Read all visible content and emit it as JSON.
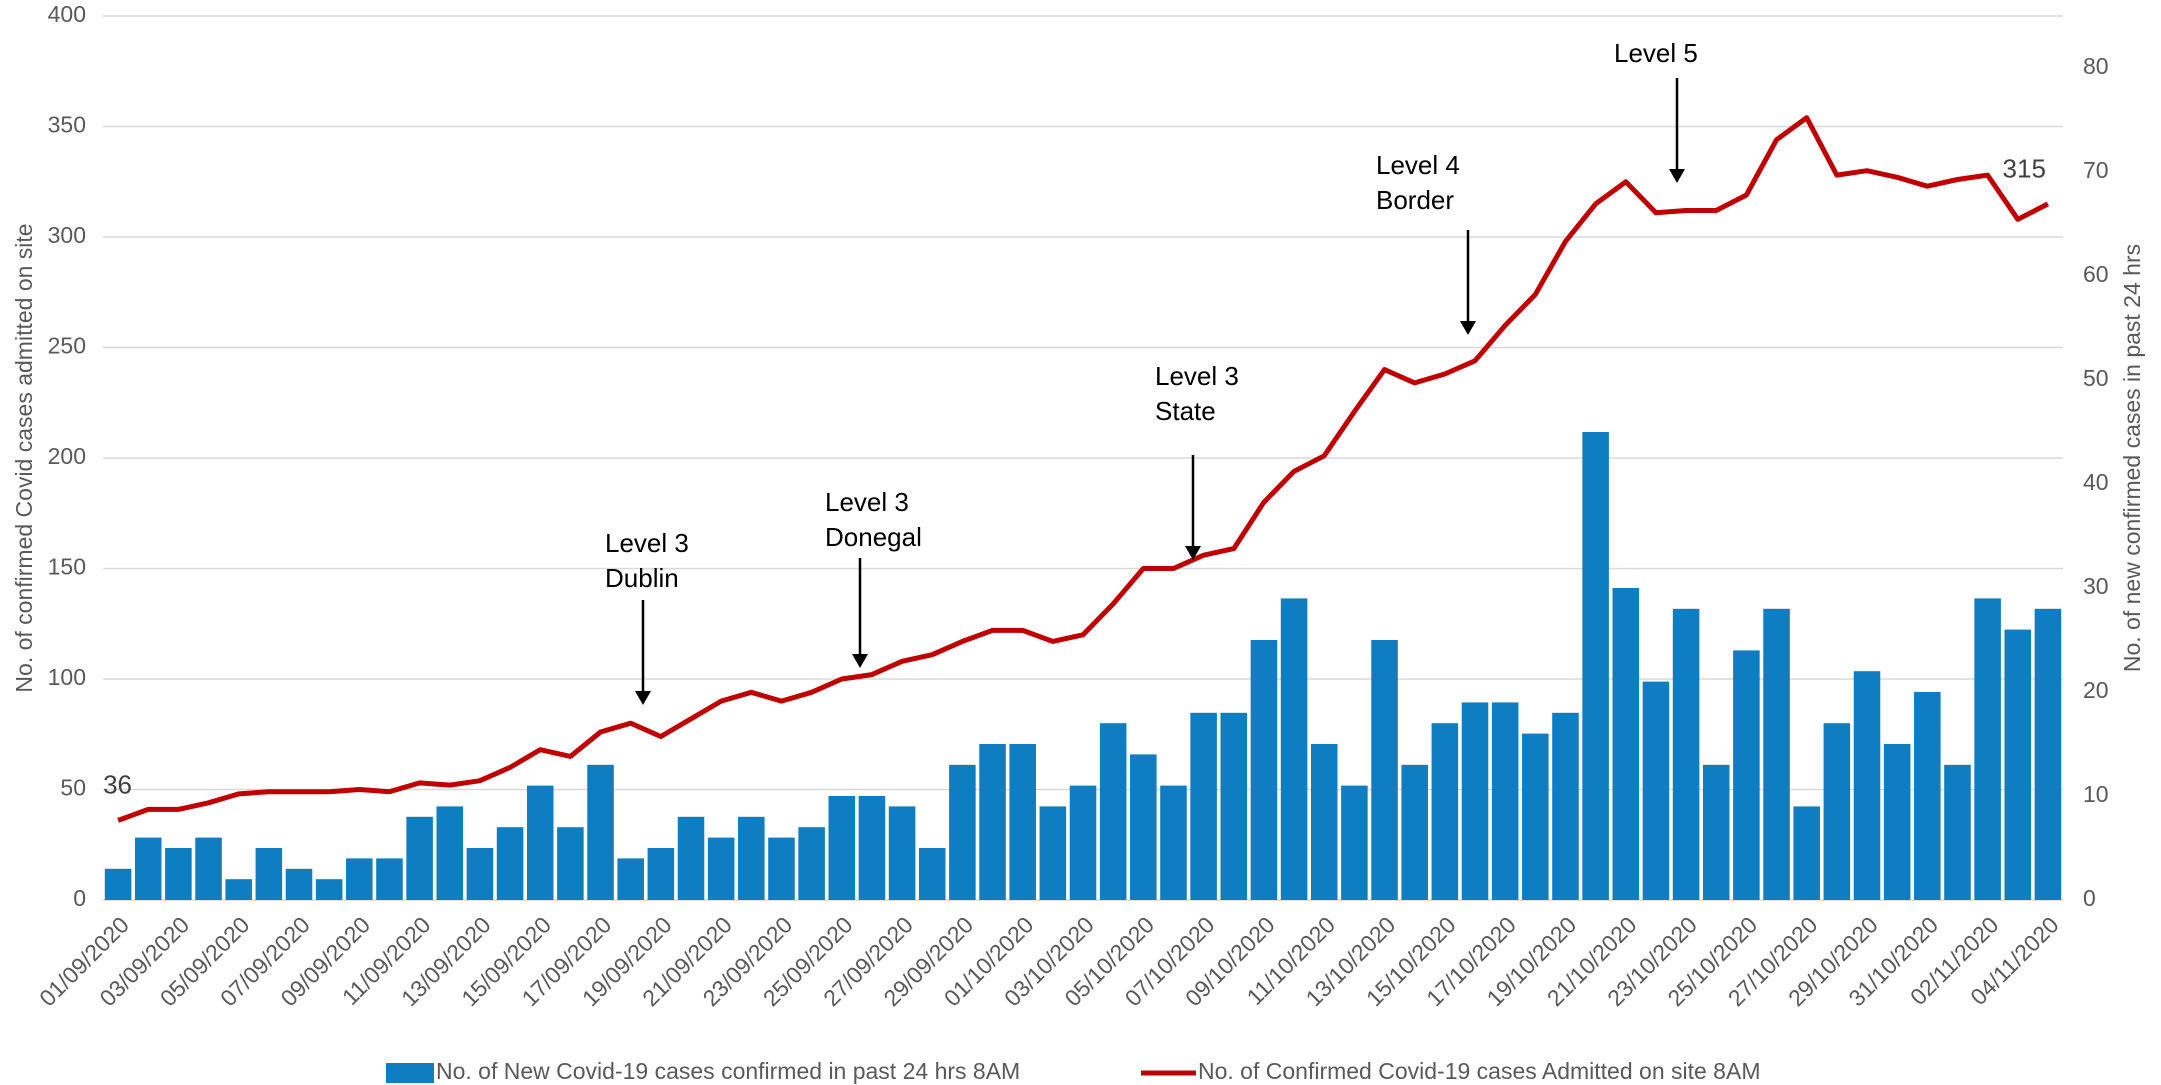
{
  "chart_data": {
    "type": "bar",
    "y_label": "No. of confirmed Covid cases admitted on site",
    "y2_label": "No. of new confirmed cases in past 24 hrs",
    "categories": [
      "01/09/2020",
      null,
      "03/09/2020",
      null,
      "05/09/2020",
      null,
      "07/09/2020",
      null,
      "09/09/2020",
      null,
      "11/09/2020",
      null,
      "13/09/2020",
      null,
      "15/09/2020",
      null,
      "17/09/2020",
      null,
      "19/09/2020",
      null,
      "21/09/2020",
      null,
      "23/09/2020",
      null,
      "25/09/2020",
      null,
      "27/09/2020",
      null,
      "29/09/2020",
      null,
      "01/10/2020",
      null,
      "03/10/2020",
      null,
      "05/10/2020",
      null,
      "07/10/2020",
      null,
      "09/10/2020",
      null,
      "11/10/2020",
      null,
      "13/10/2020",
      null,
      "15/10/2020",
      null,
      "17/10/2020",
      null,
      "19/10/2020",
      null,
      "21/10/2020",
      null,
      "23/10/2020",
      null,
      "25/10/2020",
      null,
      "27/10/2020",
      null,
      "29/10/2020",
      null,
      "31/10/2020",
      null,
      "02/11/2020",
      null,
      "04/11/2020"
    ],
    "series": [
      {
        "name": "No. of New Covid-19 cases confirmed in past 24 hrs 8AM",
        "type": "bar",
        "axis": "y2",
        "color": "#0e7dc2",
        "values": [
          3,
          6,
          5,
          6,
          2,
          5,
          3,
          2,
          4,
          4,
          8,
          9,
          5,
          7,
          11,
          7,
          13,
          4,
          5,
          8,
          6,
          8,
          6,
          7,
          10,
          10,
          9,
          5,
          13,
          15,
          15,
          9,
          11,
          17,
          14,
          11,
          18,
          18,
          25,
          29,
          15,
          11,
          25,
          13,
          17,
          19,
          19,
          16,
          18,
          45,
          30,
          21,
          28,
          13,
          24,
          28,
          9,
          17,
          22,
          15,
          20,
          13,
          29,
          26,
          28
        ]
      },
      {
        "name": "No. of Confirmed Covid-19 cases Admitted on site 8AM",
        "type": "line",
        "color": "#c00000",
        "values": [
          36,
          41,
          41,
          44,
          48,
          49,
          49,
          49,
          50,
          49,
          53,
          52,
          54,
          60,
          68,
          65,
          76,
          80,
          74,
          82,
          90,
          94,
          90,
          94,
          100,
          102,
          108,
          111,
          117,
          122,
          122,
          117,
          120,
          134,
          150,
          150,
          156,
          159,
          180,
          194,
          201,
          221,
          240,
          234,
          238,
          244,
          260,
          274,
          298,
          315,
          325,
          311,
          312,
          312,
          319,
          344,
          354,
          328,
          330,
          327,
          323,
          326,
          328,
          308,
          315
        ]
      }
    ],
    "ylim": [
      0,
      400
    ],
    "yticks": [
      0,
      50,
      100,
      150,
      200,
      250,
      300,
      350,
      400
    ],
    "y2lim": [
      0,
      85
    ],
    "y2ticks": [
      0,
      10,
      20,
      30,
      40,
      50,
      60,
      70,
      80
    ],
    "grid": true,
    "legend": "bottom",
    "annotations": [
      {
        "text": [
          "Level 3",
          "Dublin"
        ]
      },
      {
        "text": [
          "Level 3",
          "Donegal"
        ]
      },
      {
        "text": [
          "Level 3",
          "State"
        ]
      },
      {
        "text": [
          "Level 4",
          "Border"
        ]
      },
      {
        "text": [
          "Level 5"
        ]
      }
    ]
  }
}
